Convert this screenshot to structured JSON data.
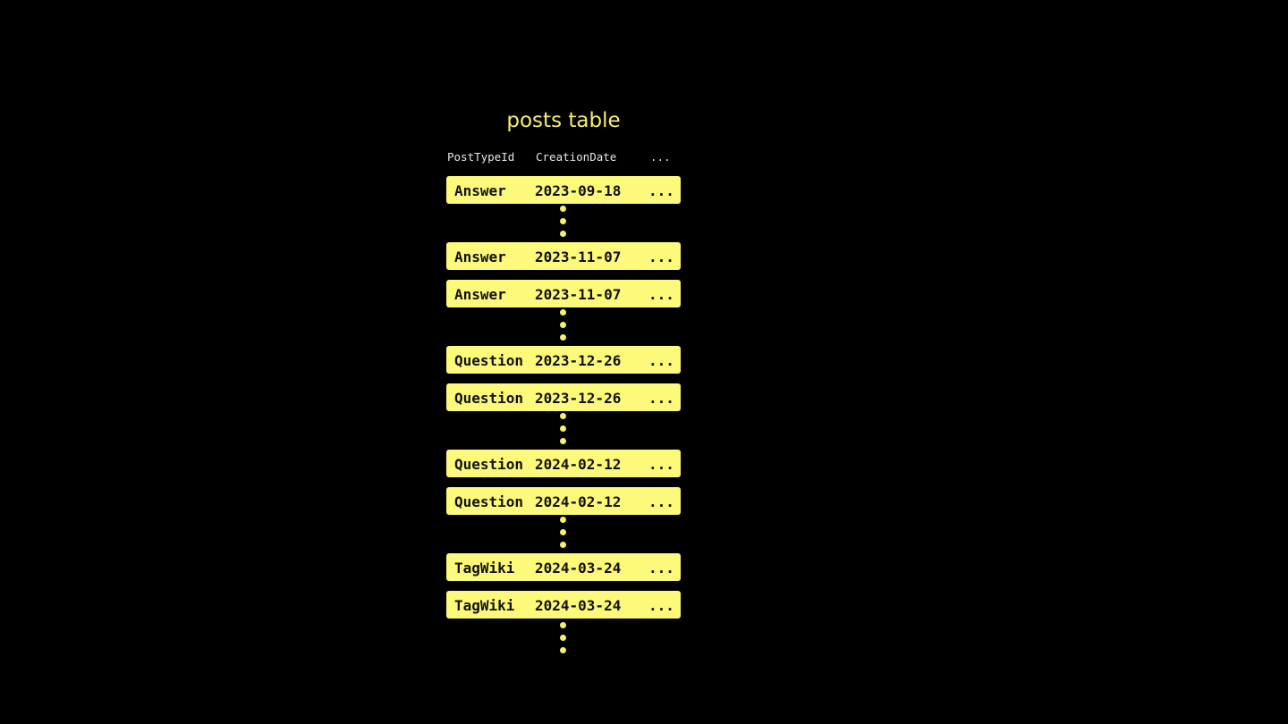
{
  "title": "posts table",
  "columns": [
    "PostTypeId",
    "CreationDate",
    "..."
  ],
  "rows": [
    {
      "type": "Answer",
      "date": "2023-09-18",
      "more": "..."
    },
    {
      "type": "Answer",
      "date": "2023-11-07",
      "more": "..."
    },
    {
      "type": "Answer",
      "date": "2023-11-07",
      "more": "..."
    },
    {
      "type": "Question",
      "date": "2023-12-26",
      "more": "..."
    },
    {
      "type": "Question",
      "date": "2023-12-26",
      "more": "..."
    },
    {
      "type": "Question",
      "date": "2024-02-12",
      "more": "..."
    },
    {
      "type": "Question",
      "date": "2024-02-12",
      "more": "..."
    },
    {
      "type": "TagWiki",
      "date": "2024-03-24",
      "more": "..."
    },
    {
      "type": "TagWiki",
      "date": "2024-03-24",
      "more": "..."
    }
  ],
  "colors": {
    "background": "#000000",
    "row": "#fdf97a",
    "accent": "#f7f06c"
  }
}
